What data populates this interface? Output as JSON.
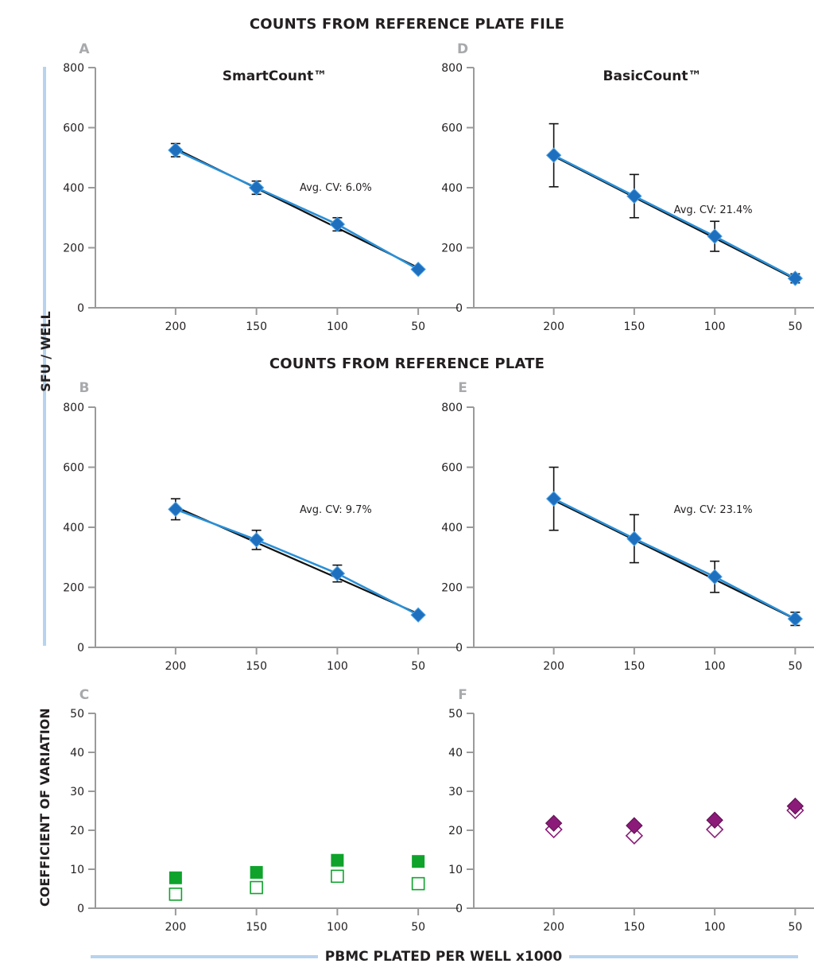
{
  "figure": {
    "title_top": "COUNTS FROM REFERENCE PLATE FILE",
    "title_mid": "COUNTS FROM REFERENCE PLATE",
    "y_label_top": "SFU / WELL",
    "y_label_bottom": "COEFFICIENT OF VARIATION",
    "x_label": "PBMC PLATED PER WELL x1000"
  },
  "colors": {
    "series_blue": "#2a8fd6",
    "marker_blue": "#1f6fbf",
    "fit_line": "#111111",
    "green": "#0fa32c",
    "purple": "#8b1a78",
    "axis": "#9a9a9a",
    "side_bar": "#b7d3ee"
  },
  "chart_data": [
    {
      "panel": "A",
      "type": "line",
      "title": "SmartCount™",
      "categories": [
        "200",
        "150",
        "100",
        "50"
      ],
      "ylim": [
        0,
        800
      ],
      "yticks": [
        0,
        200,
        400,
        600,
        800
      ],
      "annotation": "Avg. CV: 6.0%",
      "values": [
        525,
        400,
        278,
        128
      ],
      "errors": [
        22,
        22,
        22,
        6
      ],
      "fit": [
        530,
        398,
        266,
        133
      ]
    },
    {
      "panel": "D",
      "type": "line",
      "title": "BasicCount™",
      "categories": [
        "200",
        "150",
        "100",
        "50"
      ],
      "ylim": [
        0,
        800
      ],
      "yticks": [
        0,
        200,
        400,
        600,
        800
      ],
      "annotation": "Avg. CV: 21.4%",
      "values": [
        508,
        372,
        238,
        98
      ],
      "errors": [
        105,
        72,
        50,
        15
      ],
      "fit": [
        505,
        368,
        232,
        95
      ]
    },
    {
      "panel": "B",
      "type": "line",
      "title": "",
      "categories": [
        "200",
        "150",
        "100",
        "50"
      ],
      "ylim": [
        0,
        800
      ],
      "yticks": [
        0,
        200,
        400,
        600,
        800
      ],
      "annotation": "Avg. CV: 9.7%",
      "values": [
        460,
        358,
        246,
        108
      ],
      "errors": [
        35,
        32,
        28,
        6
      ],
      "fit": [
        468,
        349,
        231,
        112
      ]
    },
    {
      "panel": "E",
      "type": "line",
      "title": "",
      "categories": [
        "200",
        "150",
        "100",
        "50"
      ],
      "ylim": [
        0,
        800
      ],
      "yticks": [
        0,
        200,
        400,
        600,
        800
      ],
      "annotation": "Avg. CV: 23.1%",
      "values": [
        495,
        362,
        235,
        95
      ],
      "errors": [
        105,
        80,
        52,
        22
      ],
      "fit": [
        490,
        358,
        226,
        94
      ]
    },
    {
      "panel": "C",
      "type": "scatter",
      "title": "",
      "categories": [
        "200",
        "150",
        "100",
        "50"
      ],
      "ylim": [
        0,
        50
      ],
      "yticks": [
        0,
        10,
        20,
        30,
        40,
        50
      ],
      "marker": "square",
      "series": [
        {
          "values": [
            7.8,
            9.2,
            12.3,
            12.0
          ],
          "filled": true
        },
        {
          "values": [
            3.6,
            5.3,
            8.2,
            6.3
          ],
          "filled": false
        }
      ]
    },
    {
      "panel": "F",
      "type": "scatter",
      "title": "",
      "categories": [
        "200",
        "150",
        "100",
        "50"
      ],
      "ylim": [
        0,
        50
      ],
      "yticks": [
        0,
        10,
        20,
        30,
        40,
        50
      ],
      "marker": "diamond",
      "series": [
        {
          "values": [
            21.8,
            21.2,
            22.6,
            26.2
          ],
          "filled": true
        },
        {
          "values": [
            20.2,
            18.6,
            20.2,
            25.1
          ],
          "filled": false
        }
      ]
    }
  ]
}
